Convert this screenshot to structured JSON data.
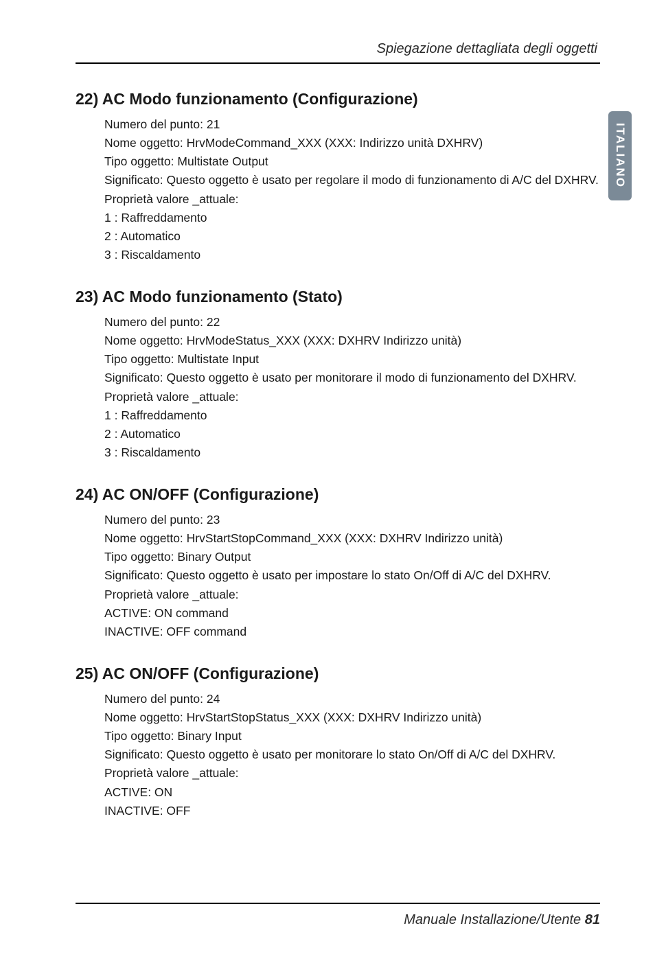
{
  "header": {
    "title": "Spiegazione dettagliata degli oggetti"
  },
  "sideTab": {
    "label": "ITALIANO",
    "bg_color": "#7b8a97",
    "text_color": "#ffffff"
  },
  "sections": [
    {
      "title": "22) AC Modo funzionamento  (Configurazione)",
      "lines": [
        "Numero del punto: 21",
        "Nome oggetto: HrvModeCommand_XXX (XXX: Indirizzo unità DXHRV)",
        "Tipo oggetto: Multistate Output",
        "Significato: Questo oggetto è usato per regolare il modo di funzionamento di A/C del DXHRV.",
        "Proprietà valore _attuale:",
        "1 : Raffreddamento",
        "2 : Automatico",
        "3 : Riscaldamento"
      ]
    },
    {
      "title": "23) AC Modo funzionamento  (Stato)",
      "lines": [
        "Numero del punto: 22",
        "Nome oggetto: HrvModeStatus_XXX (XXX: DXHRV Indirizzo unità)",
        "Tipo oggetto: Multistate Input",
        "Significato: Questo oggetto è usato per monitorare il modo di funzionamento del DXHRV.",
        "Proprietà valore _attuale:",
        "1 : Raffreddamento",
        "2 : Automatico",
        "3 : Riscaldamento"
      ]
    },
    {
      "title": "24) AC ON/OFF (Configurazione)",
      "lines": [
        "Numero del punto: 23",
        "Nome oggetto: HrvStartStopCommand_XXX (XXX: DXHRV Indirizzo unità)",
        "Tipo oggetto: Binary Output",
        "Significato: Questo oggetto è usato per impostare lo stato On/Off di A/C del DXHRV.",
        "Proprietà valore _attuale:",
        "ACTIVE: ON command",
        "INACTIVE: OFF command"
      ]
    },
    {
      "title": "25) AC ON/OFF (Configurazione)",
      "lines": [
        "Numero del punto: 24",
        "Nome oggetto: HrvStartStopStatus_XXX (XXX: DXHRV Indirizzo unità)",
        "Tipo oggetto: Binary Input",
        "Significato: Questo oggetto è usato per monitorare lo stato On/Off di A/C del DXHRV.",
        "Proprietà valore _attuale:",
        "ACTIVE: ON",
        "INACTIVE: OFF"
      ]
    }
  ],
  "footer": {
    "text": "Manuale Installazione/Utente",
    "page": "81"
  },
  "style": {
    "page_bg": "#ffffff",
    "text_color": "#1a1a1a",
    "title_fontsize": 23,
    "body_fontsize": 17.5,
    "header_fontsize": 20,
    "footer_fontsize": 20,
    "rule_color": "#000000"
  }
}
